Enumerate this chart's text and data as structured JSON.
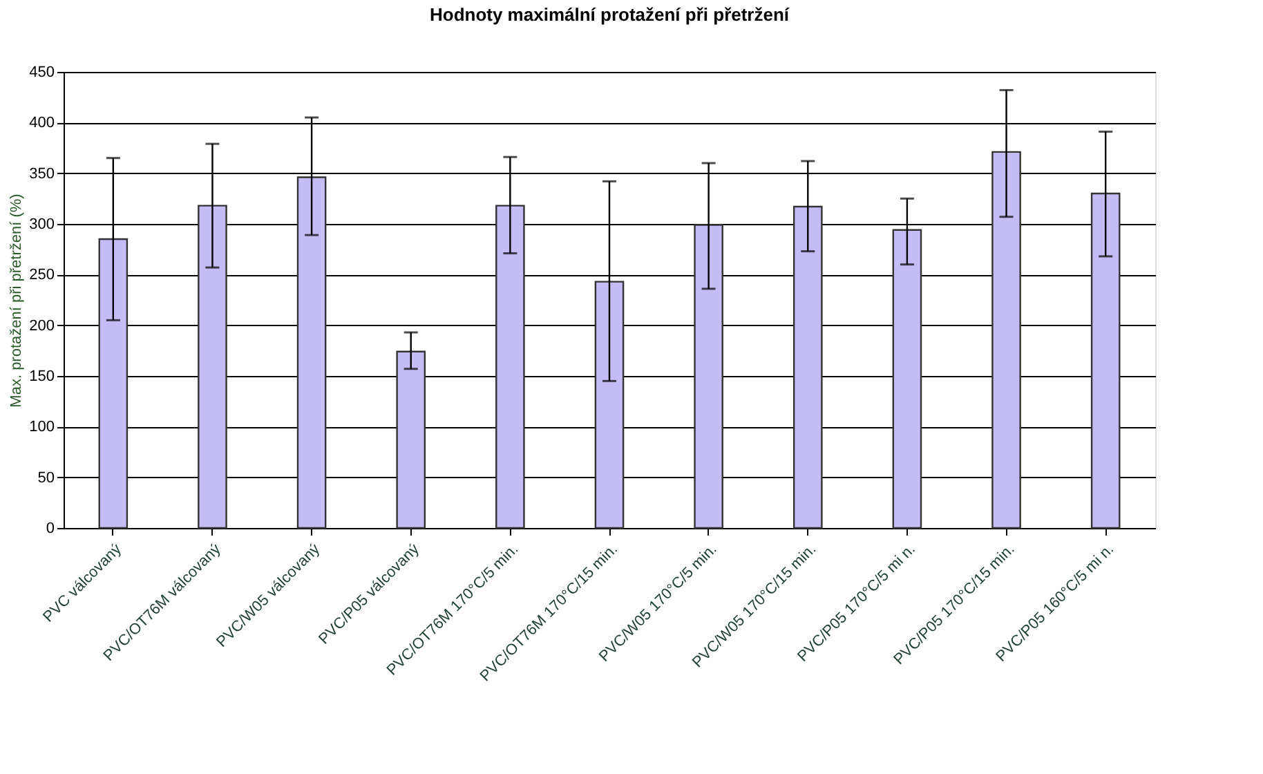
{
  "chart_data": {
    "type": "bar",
    "title": "Hodnoty maximální protažení při přetržení",
    "ylabel": "Max. protažení při přetržení (%)",
    "categories": [
      "PVC válcovaný",
      "PVC/OT76M válcovaný",
      "PVC/W05 válcovaný",
      "PVC/P05 válcovaný",
      "PVC/OT76M  170°C/5 min.",
      "PVC/OT76M  170°C/15 min.",
      "PVC/W05 170°C/5 min.",
      "PVC/W05 170°C/15 min.",
      "PVC/P05 170°C/5 mi n.",
      "PVC/P05 170°C/15  min.",
      "PVC/P05 160°C/5 mi n."
    ],
    "values": [
      285,
      318,
      346,
      174,
      318,
      243,
      299,
      317,
      294,
      371,
      330
    ],
    "errors": [
      [
        205,
        365
      ],
      [
        257,
        379
      ],
      [
        289,
        405
      ],
      [
        157,
        193
      ],
      [
        271,
        366
      ],
      [
        145,
        342
      ],
      [
        236,
        360
      ],
      [
        273,
        362
      ],
      [
        260,
        325
      ],
      [
        307,
        432
      ],
      [
        268,
        391
      ]
    ],
    "color": "#c4bcf4",
    "ylim": [
      0,
      450
    ],
    "yticks": [
      0,
      50,
      100,
      150,
      200,
      250,
      300,
      350,
      400,
      450
    ],
    "grid": "y"
  }
}
